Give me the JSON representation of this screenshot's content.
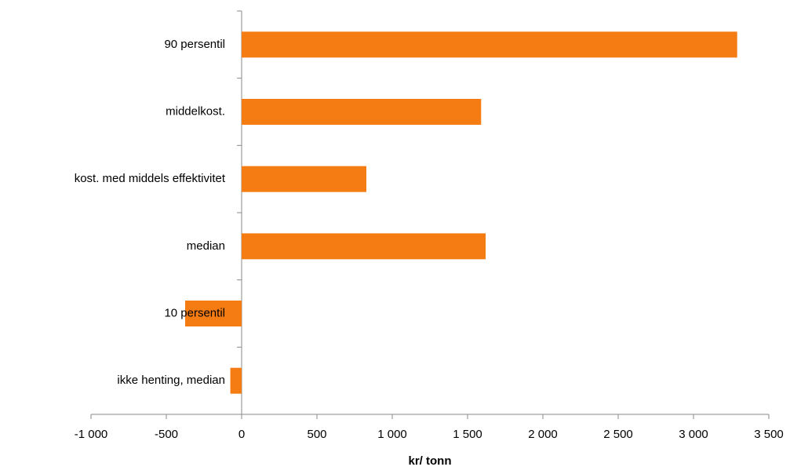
{
  "chart_data": {
    "type": "bar",
    "orientation": "horizontal",
    "x_label": "kr/ tonn",
    "categories": [
      "90 persentil",
      "middelkost.",
      "kost. med middels effektivitet",
      "median",
      "10 persentil",
      "ikke henting, median"
    ],
    "values": [
      3290,
      1590,
      828,
      1620,
      -375,
      -75
    ],
    "color": "#f57c13",
    "xlim": [
      -1000,
      3500
    ],
    "xticks": [
      {
        "value": -1000,
        "label": "-1 000"
      },
      -500,
      0,
      500,
      {
        "value": 1000,
        "label": "1 000"
      },
      {
        "value": 1500,
        "label": "1 500"
      },
      {
        "value": 2000,
        "label": "2 000"
      },
      {
        "value": 2500,
        "label": "2 500"
      },
      {
        "value": 3000,
        "label": "3 000"
      },
      {
        "value": 3500,
        "label": "3 500"
      }
    ],
    "grid": false
  }
}
